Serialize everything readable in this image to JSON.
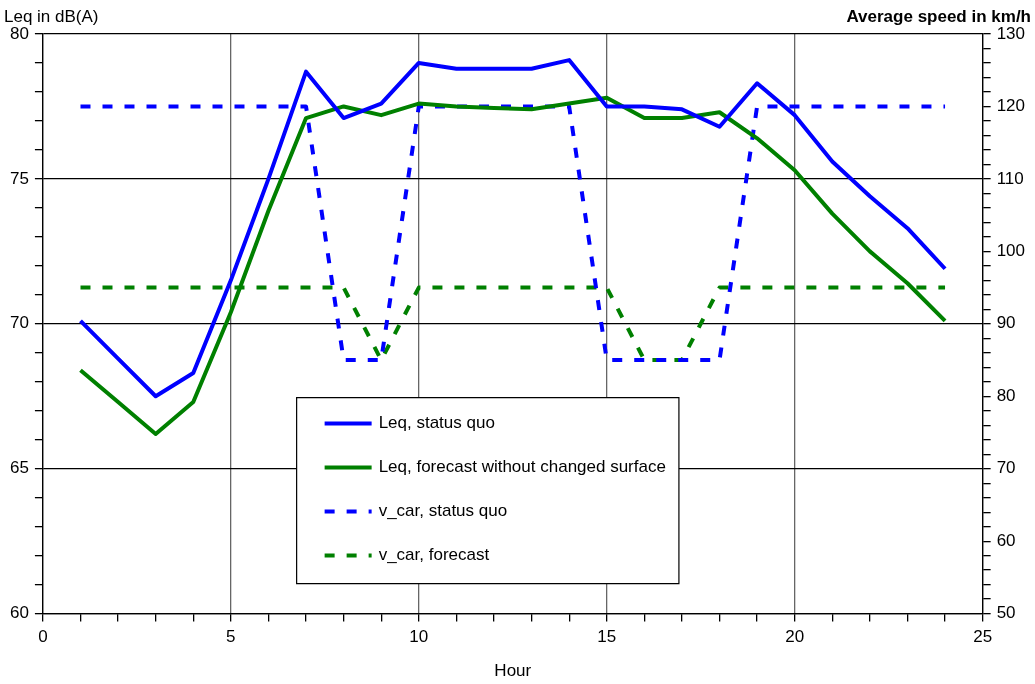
{
  "chart_data": {
    "type": "line",
    "xlabel": "Hour",
    "ylabel": "Leq in dB(A)",
    "y2label": "Average speed in km/h",
    "x": [
      1,
      2,
      3,
      4,
      5,
      6,
      7,
      8,
      9,
      10,
      11,
      12,
      13,
      14,
      15,
      16,
      17,
      18,
      19,
      20,
      21,
      22,
      23,
      24
    ],
    "xlim": [
      0,
      25
    ],
    "xticks": [
      0,
      {
        "value": 1,
        "label": null
      },
      {
        "value": 2,
        "label": null
      },
      {
        "value": 3,
        "label": null
      },
      {
        "value": 4,
        "label": null
      },
      5,
      {
        "value": 6,
        "label": null
      },
      {
        "value": 7,
        "label": null
      },
      {
        "value": 8,
        "label": null
      },
      {
        "value": 9,
        "label": null
      },
      10,
      {
        "value": 11,
        "label": null
      },
      {
        "value": 12,
        "label": null
      },
      {
        "value": 13,
        "label": null
      },
      {
        "value": 14,
        "label": null
      },
      15,
      {
        "value": 16,
        "label": null
      },
      {
        "value": 17,
        "label": null
      },
      {
        "value": 18,
        "label": null
      },
      {
        "value": 19,
        "label": null
      },
      20,
      {
        "value": 21,
        "label": null
      },
      {
        "value": 22,
        "label": null
      },
      {
        "value": 23,
        "label": null
      },
      {
        "value": 24,
        "label": null
      },
      25
    ],
    "ylim": [
      60,
      80
    ],
    "yticks": [
      60,
      {
        "value": 61,
        "label": null
      },
      {
        "value": 62,
        "label": null
      },
      {
        "value": 63,
        "label": null
      },
      {
        "value": 64,
        "label": null
      },
      65,
      {
        "value": 66,
        "label": null
      },
      {
        "value": 67,
        "label": null
      },
      {
        "value": 68,
        "label": null
      },
      {
        "value": 69,
        "label": null
      },
      70,
      {
        "value": 71,
        "label": null
      },
      {
        "value": 72,
        "label": null
      },
      {
        "value": 73,
        "label": null
      },
      {
        "value": 74,
        "label": null
      },
      75,
      {
        "value": 76,
        "label": null
      },
      {
        "value": 77,
        "label": null
      },
      {
        "value": 78,
        "label": null
      },
      {
        "value": 79,
        "label": null
      },
      80
    ],
    "y2lim": [
      50,
      130
    ],
    "y2ticks": [
      50,
      {
        "value": 52,
        "label": null
      },
      {
        "value": 54,
        "label": null
      },
      {
        "value": 56,
        "label": null
      },
      {
        "value": 58,
        "label": null
      },
      60,
      {
        "value": 62,
        "label": null
      },
      {
        "value": 64,
        "label": null
      },
      {
        "value": 66,
        "label": null
      },
      {
        "value": 68,
        "label": null
      },
      70,
      {
        "value": 72,
        "label": null
      },
      {
        "value": 74,
        "label": null
      },
      {
        "value": 76,
        "label": null
      },
      {
        "value": 78,
        "label": null
      },
      80,
      {
        "value": 82,
        "label": null
      },
      {
        "value": 84,
        "label": null
      },
      {
        "value": 86,
        "label": null
      },
      {
        "value": 88,
        "label": null
      },
      90,
      {
        "value": 92,
        "label": null
      },
      {
        "value": 94,
        "label": null
      },
      {
        "value": 96,
        "label": null
      },
      {
        "value": 98,
        "label": null
      },
      100,
      {
        "value": 102,
        "label": null
      },
      {
        "value": 104,
        "label": null
      },
      {
        "value": 106,
        "label": null
      },
      {
        "value": 108,
        "label": null
      },
      110,
      {
        "value": 112,
        "label": null
      },
      {
        "value": 114,
        "label": null
      },
      {
        "value": 116,
        "label": null
      },
      {
        "value": 118,
        "label": null
      },
      120,
      {
        "value": 122,
        "label": null
      },
      {
        "value": 124,
        "label": null
      },
      {
        "value": 126,
        "label": null
      },
      {
        "value": 128,
        "label": null
      },
      130
    ],
    "grid": true,
    "legend": "bottom",
    "marker": "none",
    "series": [
      {
        "name": "Leq, status quo",
        "color": "#0000ff",
        "line_style": "solid",
        "values": [
          70.1,
          68.8,
          67.5,
          68.3,
          71.5,
          75.0,
          78.7,
          77.1,
          77.6,
          79.0,
          78.8,
          78.8,
          78.8,
          79.1,
          77.5,
          77.5,
          77.4,
          76.8,
          78.3,
          77.2,
          75.6,
          74.4,
          73.3,
          71.9
        ]
      },
      {
        "name": "Leq, forecast without changed surface",
        "color": "#008000",
        "line_style": "solid",
        "values": [
          68.4,
          67.3,
          66.2,
          67.3,
          70.4,
          73.9,
          77.1,
          77.5,
          77.2,
          77.6,
          77.5,
          77.45,
          77.4,
          77.6,
          77.8,
          77.1,
          77.1,
          77.3,
          76.4,
          75.3,
          73.8,
          72.5,
          71.4,
          70.1
        ]
      },
      {
        "name": "v_car, status quo",
        "color": "#0000ff",
        "line_style": "dashed",
        "axis": "y2",
        "values": [
          120,
          120,
          120,
          120,
          120,
          120,
          120,
          85,
          85,
          120,
          120,
          120,
          120,
          120,
          85,
          85,
          85,
          85,
          120,
          120,
          120,
          120,
          120,
          120
        ]
      },
      {
        "name": "v_car, forecast",
        "color": "#008000",
        "line_style": "dashed",
        "axis": "y2",
        "values": [
          95,
          95,
          95,
          95,
          95,
          95,
          95,
          95,
          85,
          95,
          95,
          95,
          95,
          95,
          95,
          85,
          85,
          95,
          95,
          95,
          95,
          95,
          95,
          95
        ]
      }
    ]
  }
}
